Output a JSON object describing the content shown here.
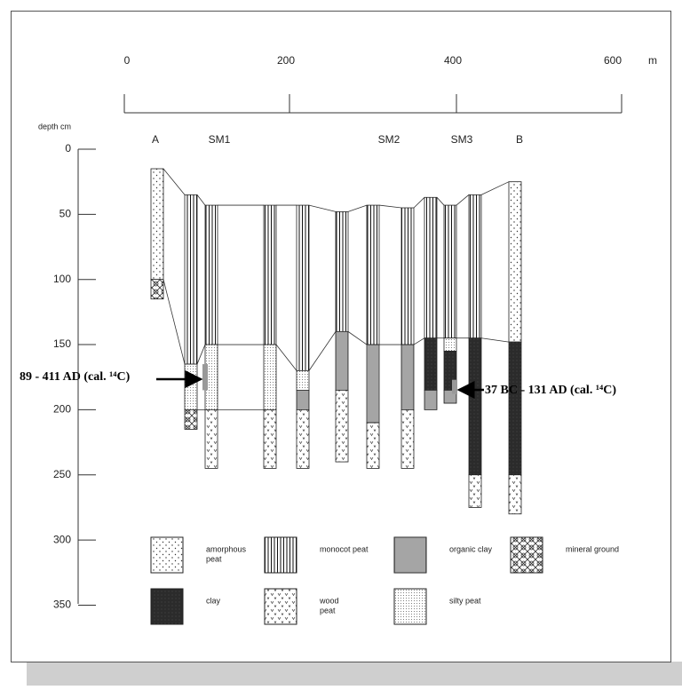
{
  "scale": {
    "ticks": [
      "0",
      "200",
      "400",
      "600"
    ],
    "unit": "m"
  },
  "depth_axis": {
    "title": "depth cm",
    "ticks": [
      "0",
      "50",
      "100",
      "150",
      "200",
      "250",
      "300",
      "350"
    ]
  },
  "cores": {
    "labels": [
      "A",
      "SM1",
      "SM2",
      "SM3",
      "B"
    ]
  },
  "annotations": [
    "89 - 411 AD (cal. ¹⁴C)",
    "37 BC - 131 AD (cal. ¹⁴C)"
  ],
  "legend": [
    {
      "label": [
        "amorphous",
        "peat"
      ]
    },
    {
      "label": [
        "monocot peat"
      ]
    },
    {
      "label": [
        "organic clay"
      ]
    },
    {
      "label": [
        "mineral ground"
      ]
    },
    {
      "label": [
        "clay"
      ]
    },
    {
      "label": [
        "wood",
        "peat"
      ]
    },
    {
      "label": [
        "silty peat"
      ]
    }
  ]
}
